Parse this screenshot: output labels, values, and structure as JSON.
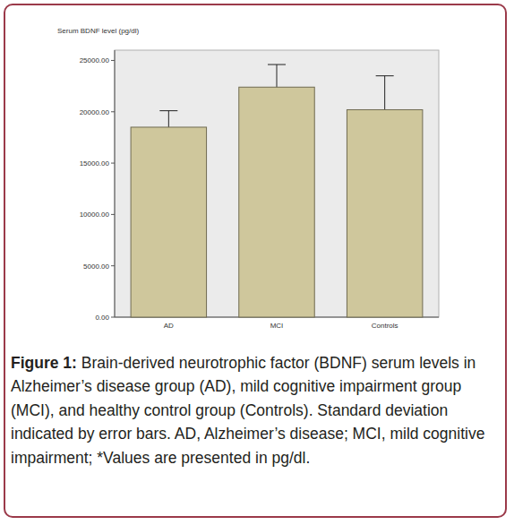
{
  "chart_data": {
    "type": "bar",
    "y_label": "Serum BDNF level (pg/dl)",
    "categories": [
      "AD",
      "MCI",
      "Controls"
    ],
    "values": [
      18500,
      22400,
      20200
    ],
    "errors": [
      1600,
      2200,
      3300
    ],
    "color": "#cfc79c",
    "ylim": [
      0,
      26000
    ],
    "yticks": [
      {
        "value": 0,
        "label": "0.00"
      },
      {
        "value": 5000,
        "label": "5000.00"
      },
      {
        "value": 10000,
        "label": "10000.00"
      },
      {
        "value": 15000,
        "label": "15000.00"
      },
      {
        "value": 20000,
        "label": "20000.00"
      },
      {
        "value": 25000,
        "label": "25000.00"
      }
    ],
    "grid": false,
    "caption_label": "Figure 1:",
    "caption": "Brain-derived neurotrophic factor (BDNF) serum levels in Alzheimer’s disease group (AD), mild cognitive impairment group (MCI), and healthy control group (Controls). Standard deviation indicated by error bars. AD, Alzheimer’s disease; MCI, mild cognitive impairment; *Values are presented in pg/dl."
  }
}
